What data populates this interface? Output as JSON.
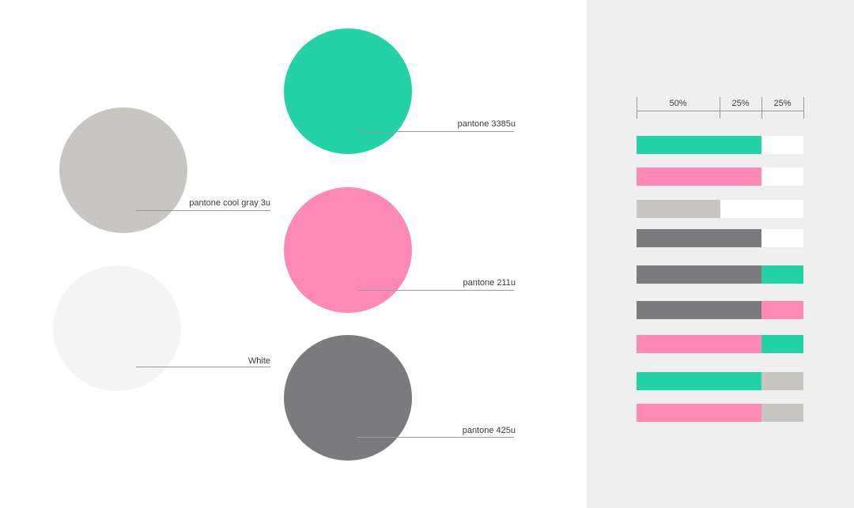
{
  "colors": {
    "green": "#23d3a6",
    "pink": "#ff89b5",
    "light_gray": "#c8c6c3",
    "dark_gray": "#7b7b7d",
    "white": "#f5f5f5",
    "bar_white": "#ffffff",
    "panel_bg": "#efefef"
  },
  "swatches": [
    {
      "label": "pantone 3385u",
      "color": "#23d3a6"
    },
    {
      "label": "pantone cool gray 3u",
      "color": "#c8c6c3"
    },
    {
      "label": "pantone 211u",
      "color": "#ff89b5"
    },
    {
      "label": "White",
      "color": "#f5f5f5"
    },
    {
      "label": "pantone 425u",
      "color": "#7b7b7d"
    }
  ],
  "proportion_header": [
    "50%",
    "25%",
    "25%"
  ],
  "proportion_bars": [
    {
      "segments": [
        {
          "color": "#23d3a6",
          "share": 0.75
        },
        {
          "color": "#ffffff",
          "share": 0.25
        }
      ]
    },
    {
      "segments": [
        {
          "color": "#ff89b5",
          "share": 0.75
        },
        {
          "color": "#ffffff",
          "share": 0.25
        }
      ]
    },
    {
      "segments": [
        {
          "color": "#c8c6c3",
          "share": 0.5
        },
        {
          "color": "#ffffff",
          "share": 0.5
        }
      ]
    },
    {
      "segments": [
        {
          "color": "#7b7b7d",
          "share": 0.75
        },
        {
          "color": "#ffffff",
          "share": 0.25
        }
      ]
    },
    {
      "segments": [
        {
          "color": "#7b7b7d",
          "share": 0.75
        },
        {
          "color": "#23d3a6",
          "share": 0.25
        }
      ]
    },
    {
      "segments": [
        {
          "color": "#7b7b7d",
          "share": 0.75
        },
        {
          "color": "#ff89b5",
          "share": 0.25
        }
      ]
    },
    {
      "segments": [
        {
          "color": "#ff89b5",
          "share": 0.75
        },
        {
          "color": "#23d3a6",
          "share": 0.25
        }
      ]
    },
    {
      "segments": [
        {
          "color": "#23d3a6",
          "share": 0.75
        },
        {
          "color": "#c8c6c3",
          "share": 0.25
        }
      ]
    },
    {
      "segments": [
        {
          "color": "#ff89b5",
          "share": 0.75
        },
        {
          "color": "#c8c6c3",
          "share": 0.25
        }
      ]
    }
  ]
}
